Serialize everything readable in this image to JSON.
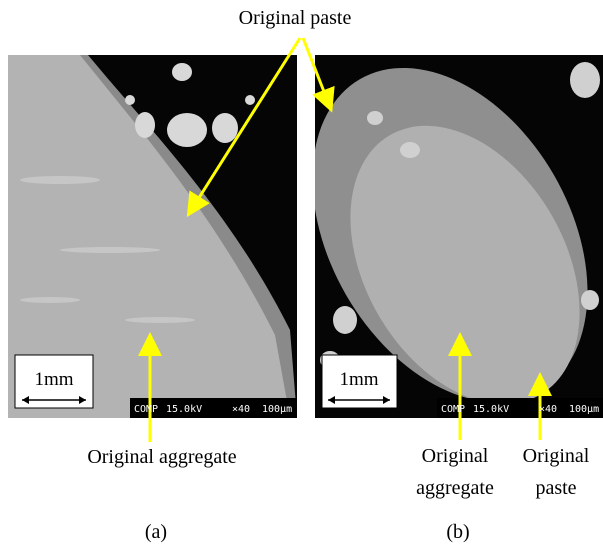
{
  "shared_annotation": "Original paste",
  "panels": [
    {
      "label": "(a)",
      "scale_bar": "1mm",
      "info": [
        "COMP",
        "15.0kV",
        "×40",
        "100µm"
      ],
      "annotations": [
        [
          "Original aggregate"
        ]
      ]
    },
    {
      "label": "(b)",
      "scale_bar": "1mm",
      "info": [
        "COMP",
        "15.0kV",
        "×40",
        "100µm"
      ],
      "annotations": [
        [
          "Original",
          "aggregate"
        ],
        [
          "Original",
          "paste"
        ]
      ]
    }
  ]
}
